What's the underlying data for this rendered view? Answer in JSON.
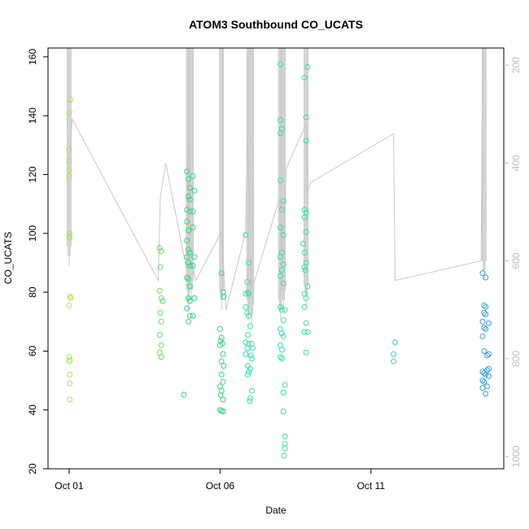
{
  "chart_data": {
    "type": "scatter",
    "title": "ATOM3 Southbound CO_UCATS",
    "xlabel": "Date",
    "ylabel": "CO_UCATS",
    "x_units": "days since Oct 01",
    "xlim": [
      -0.7,
      14.4
    ],
    "ylim": [
      20,
      163
    ],
    "x_ticks": [
      {
        "value": 0,
        "label": "Oct 01"
      },
      {
        "value": 5,
        "label": "Oct 06"
      },
      {
        "value": 10,
        "label": "Oct 11"
      }
    ],
    "y_ticks": [
      20,
      40,
      60,
      80,
      100,
      120,
      140,
      160
    ],
    "secondary_axis": {
      "label": "",
      "ticks": [
        200,
        400,
        600,
        800,
        1000
      ],
      "range_bottom": 1025,
      "range_top": 165,
      "color": "#bdbdbd"
    },
    "grid": false,
    "legend": "none",
    "marker": "open-circle",
    "color_scale": [
      "#a5e84c",
      "#5ee060",
      "#34d67c",
      "#33e0a8",
      "#3fe8d8",
      "#3bc1e6",
      "#3a9de2"
    ],
    "profile_line_color": "#c8c8c8",
    "series": [
      {
        "name": "",
        "points": [
          [
            0.05,
            145.5
          ],
          [
            0.0,
            141
          ],
          [
            0.0,
            128.5
          ],
          [
            0.0,
            124.5
          ],
          [
            0.0,
            121.5
          ],
          [
            0.0,
            119.5
          ],
          [
            0.02,
            100
          ],
          [
            0.0,
            99
          ],
          [
            0.02,
            98.5
          ],
          [
            0.03,
            78.5
          ],
          [
            0.05,
            78
          ],
          [
            0.0,
            75.5
          ],
          [
            0.0,
            58
          ],
          [
            0.03,
            57
          ],
          [
            0.0,
            56.5
          ],
          [
            0.02,
            52
          ],
          [
            0.02,
            49
          ],
          [
            0.02,
            43.5
          ],
          [
            3.0,
            95
          ],
          [
            3.05,
            94
          ],
          [
            3.02,
            88.5
          ],
          [
            3.0,
            80.5
          ],
          [
            3.05,
            78
          ],
          [
            3.1,
            77
          ],
          [
            3.02,
            73
          ],
          [
            3.05,
            70
          ],
          [
            3.0,
            65.5
          ],
          [
            3.05,
            62
          ],
          [
            3.0,
            59.5
          ],
          [
            3.05,
            58
          ],
          [
            3.8,
            45.2
          ],
          [
            3.9,
            121
          ],
          [
            3.95,
            118.5
          ],
          [
            4.0,
            115.5
          ],
          [
            3.95,
            112.5
          ],
          [
            4.0,
            111.5
          ],
          [
            3.9,
            108
          ],
          [
            4.0,
            107.5
          ],
          [
            3.9,
            104
          ],
          [
            3.95,
            101
          ],
          [
            3.9,
            97.5
          ],
          [
            3.95,
            94.5
          ],
          [
            4.0,
            93.5
          ],
          [
            3.9,
            92
          ],
          [
            3.95,
            90
          ],
          [
            4.0,
            89
          ],
          [
            3.9,
            85
          ],
          [
            3.95,
            84.5
          ],
          [
            4.0,
            82
          ],
          [
            3.95,
            78
          ],
          [
            4.0,
            77
          ],
          [
            3.9,
            74.5
          ],
          [
            4.0,
            72
          ],
          [
            3.95,
            70
          ],
          [
            4.1,
            119.5
          ],
          [
            4.15,
            114.5
          ],
          [
            4.1,
            107.5
          ],
          [
            4.1,
            102
          ],
          [
            4.15,
            92
          ],
          [
            4.1,
            89
          ],
          [
            4.15,
            78
          ],
          [
            4.1,
            72
          ],
          [
            5.05,
            86.5
          ],
          [
            5.1,
            80
          ],
          [
            5.12,
            78.5
          ],
          [
            5.0,
            67.5
          ],
          [
            5.05,
            64.5
          ],
          [
            5.02,
            63.5
          ],
          [
            5.08,
            62.5
          ],
          [
            5.0,
            62
          ],
          [
            5.1,
            59
          ],
          [
            5.05,
            56.5
          ],
          [
            5.12,
            55
          ],
          [
            5.05,
            52
          ],
          [
            5.1,
            49.5
          ],
          [
            5.0,
            48
          ],
          [
            5.05,
            46.5
          ],
          [
            5.02,
            45
          ],
          [
            5.1,
            43.5
          ],
          [
            5.0,
            40
          ],
          [
            5.05,
            39.7
          ],
          [
            5.1,
            39.5
          ],
          [
            5.85,
            99.5
          ],
          [
            5.95,
            90
          ],
          [
            5.9,
            83.5
          ],
          [
            5.85,
            79.5
          ],
          [
            5.95,
            79.5
          ],
          [
            5.92,
            80
          ],
          [
            5.85,
            75
          ],
          [
            5.9,
            73
          ],
          [
            5.95,
            72
          ],
          [
            6.0,
            68.5
          ],
          [
            5.92,
            65.5
          ],
          [
            5.85,
            63
          ],
          [
            5.95,
            62.5
          ],
          [
            5.9,
            61
          ],
          [
            5.85,
            59
          ],
          [
            5.92,
            55
          ],
          [
            6.0,
            54
          ],
          [
            5.95,
            53
          ],
          [
            5.92,
            52
          ],
          [
            6.05,
            46.5
          ],
          [
            6.0,
            44
          ],
          [
            5.98,
            43
          ],
          [
            6.05,
            62.5
          ],
          [
            6.08,
            61
          ],
          [
            6.02,
            58.5
          ],
          [
            6.05,
            57.5
          ],
          [
            7.0,
            157.5
          ],
          [
            7.0,
            138.5
          ],
          [
            7.05,
            135.5
          ],
          [
            7.0,
            134
          ],
          [
            7.0,
            118
          ],
          [
            7.1,
            111
          ],
          [
            7.05,
            108
          ],
          [
            7.0,
            102
          ],
          [
            7.1,
            99.5
          ],
          [
            7.05,
            93.5
          ],
          [
            7.0,
            92
          ],
          [
            7.1,
            89.5
          ],
          [
            7.05,
            87.5
          ],
          [
            7.0,
            85.5
          ],
          [
            7.1,
            83
          ],
          [
            7.0,
            75
          ],
          [
            7.05,
            74
          ],
          [
            7.15,
            74
          ],
          [
            7.1,
            70.5
          ],
          [
            7.0,
            67.5
          ],
          [
            7.05,
            66
          ],
          [
            7.1,
            65
          ],
          [
            7.0,
            62
          ],
          [
            7.05,
            60.5
          ],
          [
            7.0,
            58
          ],
          [
            7.05,
            57.5
          ],
          [
            7.15,
            48.5
          ],
          [
            7.1,
            46
          ],
          [
            7.1,
            39.5
          ],
          [
            7.15,
            31
          ],
          [
            7.15,
            28.5
          ],
          [
            7.15,
            27
          ],
          [
            7.12,
            24.5
          ],
          [
            7.9,
            156.5
          ],
          [
            7.8,
            153
          ],
          [
            7.85,
            139.5
          ],
          [
            7.85,
            131.5
          ],
          [
            7.8,
            108
          ],
          [
            7.85,
            107
          ],
          [
            7.8,
            105.5
          ],
          [
            7.85,
            100.5
          ],
          [
            7.75,
            96.5
          ],
          [
            7.8,
            93.5
          ],
          [
            7.85,
            90
          ],
          [
            7.8,
            88.5
          ],
          [
            7.82,
            87.5
          ],
          [
            7.9,
            82
          ],
          [
            7.8,
            79.5
          ],
          [
            7.85,
            78
          ],
          [
            7.8,
            75
          ],
          [
            7.85,
            69.5
          ],
          [
            7.8,
            66.5
          ],
          [
            7.9,
            66.5
          ],
          [
            7.85,
            59.5
          ],
          [
            10.8,
            63
          ],
          [
            10.75,
            59
          ],
          [
            10.75,
            56.5
          ],
          [
            13.7,
            86.5
          ],
          [
            13.8,
            85
          ],
          [
            13.75,
            75.5
          ],
          [
            13.8,
            75
          ],
          [
            13.75,
            73
          ],
          [
            13.8,
            72.5
          ],
          [
            13.7,
            70
          ],
          [
            13.9,
            69.5
          ],
          [
            13.75,
            68
          ],
          [
            13.8,
            67.5
          ],
          [
            13.7,
            65
          ],
          [
            13.75,
            60
          ],
          [
            13.9,
            59
          ],
          [
            13.85,
            58.5
          ],
          [
            13.9,
            54
          ],
          [
            13.85,
            53.5
          ],
          [
            13.7,
            53
          ],
          [
            13.75,
            52.5
          ],
          [
            13.8,
            52
          ],
          [
            13.9,
            51.5
          ],
          [
            13.7,
            50
          ],
          [
            13.75,
            49.5
          ],
          [
            13.85,
            48
          ],
          [
            13.7,
            47.5
          ],
          [
            13.8,
            45.5
          ]
        ]
      }
    ],
    "profile_segments": [
      {
        "x": [
          0,
          0.1,
          2.95,
          3.02
        ],
        "y": [
          410,
          310,
          640,
          470
        ]
      },
      {
        "x": [
          3.02,
          3.2,
          3.9,
          3.95
        ],
        "y": [
          470,
          400,
          620,
          300
        ]
      },
      {
        "x": [
          3.95,
          4.05,
          4.2,
          5.05
        ],
        "y": [
          300,
          600,
          640,
          540
        ]
      },
      {
        "x": [
          5.05,
          5.2,
          5.85,
          5.9
        ],
        "y": [
          540,
          700,
          540,
          340
        ]
      },
      {
        "x": [
          5.9,
          6.05,
          6.98,
          7.05
        ],
        "y": [
          340,
          660,
          470,
          600
        ]
      },
      {
        "x": [
          7.05,
          7.2,
          7.85,
          7.9
        ],
        "y": [
          600,
          410,
          320,
          460
        ]
      },
      {
        "x": [
          7.9,
          8.0,
          10.75,
          10.8
        ],
        "y": [
          460,
          440,
          340,
          640
        ]
      },
      {
        "x": [
          10.8,
          13.65,
          13.7
        ],
        "y": [
          640,
          600,
          165
        ]
      }
    ],
    "profile_spikes": [
      {
        "x": 0.0,
        "top": 165,
        "bottom": 610
      },
      {
        "x": 3.95,
        "top": 165,
        "bottom": 700
      },
      {
        "x": 4.05,
        "top": 165,
        "bottom": 680
      },
      {
        "x": 5.05,
        "top": 165,
        "bottom": 700
      },
      {
        "x": 5.95,
        "top": 165,
        "bottom": 720
      },
      {
        "x": 6.05,
        "top": 165,
        "bottom": 730
      },
      {
        "x": 7.0,
        "top": 165,
        "bottom": 720
      },
      {
        "x": 7.1,
        "top": 165,
        "bottom": 700
      },
      {
        "x": 7.85,
        "top": 165,
        "bottom": 690
      },
      {
        "x": 13.75,
        "top": 165,
        "bottom": 640
      }
    ]
  }
}
